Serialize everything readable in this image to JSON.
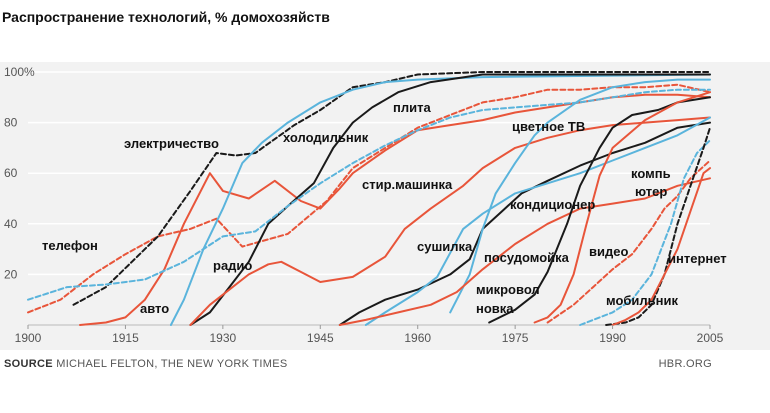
{
  "title": "Распространение технологий, % домохозяйств",
  "footer": {
    "source_prefix": "SOURCE",
    "source_text": "MICHAEL FELTON, THE NEW YORK TIMES",
    "brand": "HBR.ORG"
  },
  "colors": {
    "black": "#1a1a1a",
    "red": "#e8553a",
    "blue": "#5ab4dc",
    "background": "#f2f2f2",
    "grid": "#ffffff"
  },
  "chart_data": {
    "type": "line",
    "title": "Распространение технологий, % домохозяйств",
    "xlabel": "",
    "ylabel": "",
    "xlim": [
      1900,
      2005
    ],
    "ylim": [
      0,
      100
    ],
    "xticks": [
      1900,
      1915,
      1930,
      1945,
      1960,
      1975,
      1990,
      2005
    ],
    "xtick_labels": [
      "1900",
      "1915",
      "1930",
      "1945",
      "1960",
      "1975",
      "1990",
      "2005"
    ],
    "yticks": [
      20,
      40,
      60,
      80,
      100
    ],
    "ytick_labels": [
      "20",
      "40",
      "60",
      "80",
      "100%"
    ],
    "grid": true,
    "series": [
      {
        "name": "телефон",
        "color": "red",
        "dash": true,
        "points": [
          [
            1900,
            5
          ],
          [
            1905,
            10
          ],
          [
            1910,
            20
          ],
          [
            1915,
            28
          ],
          [
            1920,
            35
          ],
          [
            1925,
            38
          ],
          [
            1929,
            42
          ],
          [
            1933,
            31
          ],
          [
            1940,
            36
          ],
          [
            1946,
            49
          ],
          [
            1950,
            62
          ],
          [
            1955,
            70
          ],
          [
            1960,
            78
          ],
          [
            1965,
            83
          ],
          [
            1970,
            88
          ],
          [
            1975,
            90
          ],
          [
            1980,
            93
          ],
          [
            1985,
            93
          ],
          [
            1990,
            94
          ],
          [
            1995,
            94
          ],
          [
            2000,
            95
          ],
          [
            2005,
            92
          ]
        ]
      },
      {
        "name": "электричество",
        "color": "black",
        "dash": true,
        "points": [
          [
            1907,
            8
          ],
          [
            1912,
            15
          ],
          [
            1916,
            25
          ],
          [
            1920,
            35
          ],
          [
            1925,
            53
          ],
          [
            1929,
            68
          ],
          [
            1932,
            67
          ],
          [
            1935,
            68
          ],
          [
            1941,
            79
          ],
          [
            1945,
            85
          ],
          [
            1950,
            94
          ],
          [
            1955,
            96
          ],
          [
            1960,
            99
          ],
          [
            1970,
            100
          ],
          [
            2005,
            100
          ]
        ]
      },
      {
        "name": "авто",
        "color": "red",
        "dash": false,
        "points": [
          [
            1908,
            0
          ],
          [
            1912,
            1
          ],
          [
            1915,
            3
          ],
          [
            1918,
            10
          ],
          [
            1921,
            22
          ],
          [
            1924,
            40
          ],
          [
            1928,
            60
          ],
          [
            1930,
            53
          ],
          [
            1934,
            50
          ],
          [
            1938,
            57
          ],
          [
            1942,
            49
          ],
          [
            1945,
            46
          ],
          [
            1948,
            54
          ],
          [
            1950,
            60
          ],
          [
            1955,
            69
          ],
          [
            1960,
            77
          ],
          [
            1965,
            79
          ],
          [
            1970,
            81
          ],
          [
            1975,
            84
          ],
          [
            1980,
            86
          ],
          [
            1985,
            88
          ],
          [
            1990,
            90
          ],
          [
            1995,
            91
          ],
          [
            2000,
            91
          ],
          [
            2005,
            90
          ]
        ]
      },
      {
        "name": "радио",
        "color": "blue",
        "dash": false,
        "points": [
          [
            1922,
            0
          ],
          [
            1924,
            10
          ],
          [
            1927,
            30
          ],
          [
            1930,
            46
          ],
          [
            1933,
            64
          ],
          [
            1936,
            72
          ],
          [
            1940,
            80
          ],
          [
            1945,
            88
          ],
          [
            1950,
            93
          ],
          [
            1955,
            96
          ],
          [
            1960,
            97
          ],
          [
            1970,
            98
          ],
          [
            2005,
            99
          ]
        ]
      },
      {
        "name": "холодильник",
        "color": "black",
        "dash": false,
        "points": [
          [
            1925,
            0
          ],
          [
            1928,
            5
          ],
          [
            1931,
            15
          ],
          [
            1934,
            25
          ],
          [
            1937,
            40
          ],
          [
            1940,
            47
          ],
          [
            1944,
            56
          ],
          [
            1947,
            70
          ],
          [
            1950,
            80
          ],
          [
            1953,
            86
          ],
          [
            1957,
            92
          ],
          [
            1962,
            96
          ],
          [
            1970,
            99
          ],
          [
            2005,
            99
          ]
        ]
      },
      {
        "name": "стир.машинка",
        "color": "red",
        "dash": false,
        "points": [
          [
            1925,
            0
          ],
          [
            1928,
            8
          ],
          [
            1931,
            14
          ],
          [
            1934,
            20
          ],
          [
            1937,
            24
          ],
          [
            1939,
            25
          ],
          [
            1942,
            21
          ],
          [
            1945,
            17
          ],
          [
            1950,
            19
          ],
          [
            1955,
            27
          ],
          [
            1958,
            38
          ],
          [
            1962,
            46
          ],
          [
            1967,
            55
          ],
          [
            1970,
            62
          ],
          [
            1975,
            70
          ],
          [
            1980,
            74
          ],
          [
            1985,
            77
          ],
          [
            1990,
            79
          ],
          [
            1995,
            80
          ],
          [
            2000,
            81
          ],
          [
            2005,
            82
          ]
        ]
      },
      {
        "name": "плита",
        "color": "blue",
        "dash": true,
        "points": [
          [
            1900,
            10
          ],
          [
            1906,
            15
          ],
          [
            1912,
            16
          ],
          [
            1918,
            18
          ],
          [
            1924,
            25
          ],
          [
            1930,
            35
          ],
          [
            1935,
            37
          ],
          [
            1940,
            47
          ],
          [
            1945,
            56
          ],
          [
            1950,
            64
          ],
          [
            1955,
            71
          ],
          [
            1960,
            77
          ],
          [
            1965,
            82
          ],
          [
            1970,
            85
          ],
          [
            1975,
            86
          ],
          [
            1980,
            87
          ],
          [
            1985,
            88
          ],
          [
            1990,
            90
          ],
          [
            1995,
            92
          ],
          [
            2000,
            93
          ],
          [
            2005,
            93
          ]
        ]
      },
      {
        "name": "сушилка",
        "color": "black",
        "dash": false,
        "points": [
          [
            1948,
            0
          ],
          [
            1951,
            5
          ],
          [
            1955,
            10
          ],
          [
            1960,
            14
          ],
          [
            1965,
            20
          ],
          [
            1968,
            26
          ],
          [
            1970,
            38
          ],
          [
            1973,
            45
          ],
          [
            1976,
            52
          ],
          [
            1980,
            57
          ],
          [
            1985,
            63
          ],
          [
            1990,
            68
          ],
          [
            1995,
            72
          ],
          [
            2000,
            78
          ],
          [
            2005,
            80
          ]
        ]
      },
      {
        "name": "цветное ТВ",
        "color": "blue",
        "dash": false,
        "points": [
          [
            1965,
            5
          ],
          [
            1968,
            20
          ],
          [
            1970,
            38
          ],
          [
            1972,
            52
          ],
          [
            1975,
            64
          ],
          [
            1978,
            75
          ],
          [
            1980,
            80
          ],
          [
            1985,
            89
          ],
          [
            1990,
            94
          ],
          [
            1995,
            96
          ],
          [
            2000,
            97
          ],
          [
            2005,
            97
          ]
        ]
      },
      {
        "name": "кондиционер",
        "color": "blue",
        "dash": false,
        "points": [
          [
            1952,
            0
          ],
          [
            1955,
            5
          ],
          [
            1960,
            13
          ],
          [
            1963,
            19
          ],
          [
            1967,
            38
          ],
          [
            1970,
            44
          ],
          [
            1975,
            52
          ],
          [
            1980,
            56
          ],
          [
            1985,
            60
          ],
          [
            1990,
            65
          ],
          [
            1995,
            70
          ],
          [
            2000,
            75
          ],
          [
            2005,
            82
          ]
        ]
      },
      {
        "name": "посудомойка",
        "color": "red",
        "dash": false,
        "points": [
          [
            1948,
            0
          ],
          [
            1952,
            2
          ],
          [
            1957,
            5
          ],
          [
            1962,
            8
          ],
          [
            1966,
            13
          ],
          [
            1970,
            22
          ],
          [
            1975,
            32
          ],
          [
            1980,
            40
          ],
          [
            1985,
            46
          ],
          [
            1990,
            48
          ],
          [
            1995,
            50
          ],
          [
            2000,
            55
          ],
          [
            2005,
            58
          ]
        ]
      },
      {
        "name": "микроволновка",
        "color": "black",
        "dash": false,
        "points": [
          [
            1971,
            1
          ],
          [
            1975,
            6
          ],
          [
            1978,
            12
          ],
          [
            1980,
            21
          ],
          [
            1983,
            40
          ],
          [
            1985,
            55
          ],
          [
            1988,
            70
          ],
          [
            1990,
            78
          ],
          [
            1993,
            83
          ],
          [
            1997,
            85
          ],
          [
            2000,
            88
          ],
          [
            2005,
            90
          ]
        ]
      },
      {
        "name": "видео",
        "color": "red",
        "dash": false,
        "points": [
          [
            1978,
            1
          ],
          [
            1980,
            3
          ],
          [
            1982,
            8
          ],
          [
            1984,
            20
          ],
          [
            1986,
            40
          ],
          [
            1988,
            59
          ],
          [
            1990,
            70
          ],
          [
            1995,
            81
          ],
          [
            2000,
            88
          ],
          [
            2005,
            92
          ]
        ]
      },
      {
        "name": "компьютер",
        "color": "red",
        "dash": true,
        "points": [
          [
            1980,
            1
          ],
          [
            1984,
            8
          ],
          [
            1987,
            15
          ],
          [
            1990,
            22
          ],
          [
            1993,
            28
          ],
          [
            1996,
            38
          ],
          [
            1998,
            46
          ],
          [
            2000,
            51
          ],
          [
            2002,
            58
          ],
          [
            2005,
            65
          ]
        ]
      },
      {
        "name": "мобильник",
        "color": "blue",
        "dash": true,
        "points": [
          [
            1985,
            0
          ],
          [
            1988,
            3
          ],
          [
            1990,
            5
          ],
          [
            1993,
            10
          ],
          [
            1996,
            20
          ],
          [
            1999,
            40
          ],
          [
            2001,
            58
          ],
          [
            2003,
            68
          ],
          [
            2005,
            73
          ]
        ]
      },
      {
        "name": "интернет",
        "color": "black",
        "dash": true,
        "points": [
          [
            1989,
            0
          ],
          [
            1992,
            1
          ],
          [
            1994,
            3
          ],
          [
            1996,
            8
          ],
          [
            1998,
            20
          ],
          [
            2000,
            40
          ],
          [
            2002,
            55
          ],
          [
            2004,
            70
          ],
          [
            2005,
            78
          ]
        ]
      },
      {
        "name": "",
        "color": "red",
        "dash": false,
        "points": [
          [
            1990,
            0
          ],
          [
            1992,
            2
          ],
          [
            1994,
            5
          ],
          [
            1996,
            10
          ],
          [
            1998,
            20
          ],
          [
            2000,
            30
          ],
          [
            2002,
            45
          ],
          [
            2004,
            60
          ],
          [
            2005,
            62
          ]
        ]
      }
    ],
    "annotations": [
      {
        "id": "telefon",
        "text": "телефон"
      },
      {
        "id": "elektr",
        "text": "электричество"
      },
      {
        "id": "avto",
        "text": "авто"
      },
      {
        "id": "radio",
        "text": "радио"
      },
      {
        "id": "holod",
        "text": "холодильник"
      },
      {
        "id": "stir",
        "text": "стир.машинка"
      },
      {
        "id": "plita",
        "text": "плита"
      },
      {
        "id": "sush",
        "text": "сушилка"
      },
      {
        "id": "ctv",
        "text": "цветное ТВ"
      },
      {
        "id": "kond",
        "text": "кондиционер"
      },
      {
        "id": "posud",
        "text": "посудомойка"
      },
      {
        "id": "mikro1",
        "text": "микровол"
      },
      {
        "id": "mikro2",
        "text": "новка"
      },
      {
        "id": "video",
        "text": "видео"
      },
      {
        "id": "komp1",
        "text": "компь"
      },
      {
        "id": "komp2",
        "text": "ютер"
      },
      {
        "id": "mob",
        "text": "мобильник"
      },
      {
        "id": "inet",
        "text": "интернет"
      }
    ]
  }
}
